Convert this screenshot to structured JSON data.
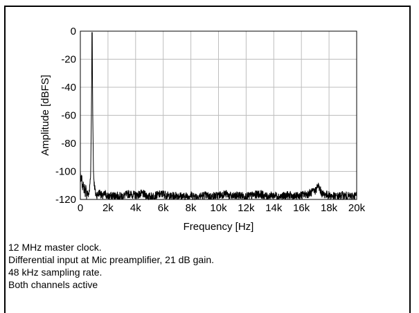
{
  "chart_data": {
    "type": "line",
    "title": "",
    "xlabel": "Frequency [Hz]",
    "ylabel": "Amplitude [dBFS]",
    "xlim": [
      0,
      20000
    ],
    "ylim": [
      -120,
      0
    ],
    "grid": true,
    "x_ticks": [
      0,
      2000,
      4000,
      6000,
      8000,
      10000,
      12000,
      14000,
      16000,
      18000,
      20000
    ],
    "x_tick_labels": [
      "0",
      "2k",
      "4k",
      "6k",
      "8k",
      "10k",
      "12k",
      "14k",
      "16k",
      "18k",
      "20k"
    ],
    "y_ticks": [
      0,
      -20,
      -40,
      -60,
      -80,
      -100,
      -120
    ],
    "y_tick_labels": [
      "0",
      "-20",
      "-40",
      "-60",
      "-80",
      "-100",
      "-120"
    ],
    "series": [
      {
        "x": [
          0,
          50,
          100,
          150,
          200,
          250,
          300,
          350,
          400,
          450,
          500,
          550,
          600,
          650,
          700,
          750,
          800,
          850,
          900,
          950,
          1000,
          1050,
          1100,
          1200,
          1400,
          1600,
          1800,
          2000,
          2500,
          3000,
          3500,
          4000,
          4500,
          5000,
          5500,
          6000,
          6500,
          7000,
          7500,
          8000,
          8500,
          9000,
          9500,
          10000,
          10500,
          11000,
          11500,
          12000,
          12500,
          13000,
          13500,
          14000,
          14500,
          15000,
          15500,
          16000,
          16500,
          17000,
          17200,
          17500,
          18000,
          18500,
          19000,
          19500,
          20000
        ],
        "y": [
          -100,
          -108,
          -104,
          -112,
          -107,
          -114,
          -110,
          -116,
          -112,
          -117,
          -114,
          -117,
          -116,
          -115,
          -108,
          -100,
          -60,
          -1,
          -60,
          -100,
          -108,
          -112,
          -116,
          -117,
          -115,
          -118,
          -116,
          -118,
          -117,
          -118,
          -116,
          -117,
          -116,
          -118,
          -117,
          -116,
          -118,
          -117,
          -118,
          -117,
          -118,
          -117,
          -118,
          -117,
          -116,
          -118,
          -117,
          -118,
          -117,
          -116,
          -118,
          -117,
          -118,
          -117,
          -118,
          -117,
          -116,
          -114,
          -110,
          -116,
          -117,
          -118,
          -117,
          -118,
          -117
        ]
      }
    ]
  },
  "notes": [
    "12 MHz master clock.",
    "Differential input at Mic preamplifier, 21 dB gain.",
    "48 kHz sampling rate.",
    "Both channels active"
  ]
}
